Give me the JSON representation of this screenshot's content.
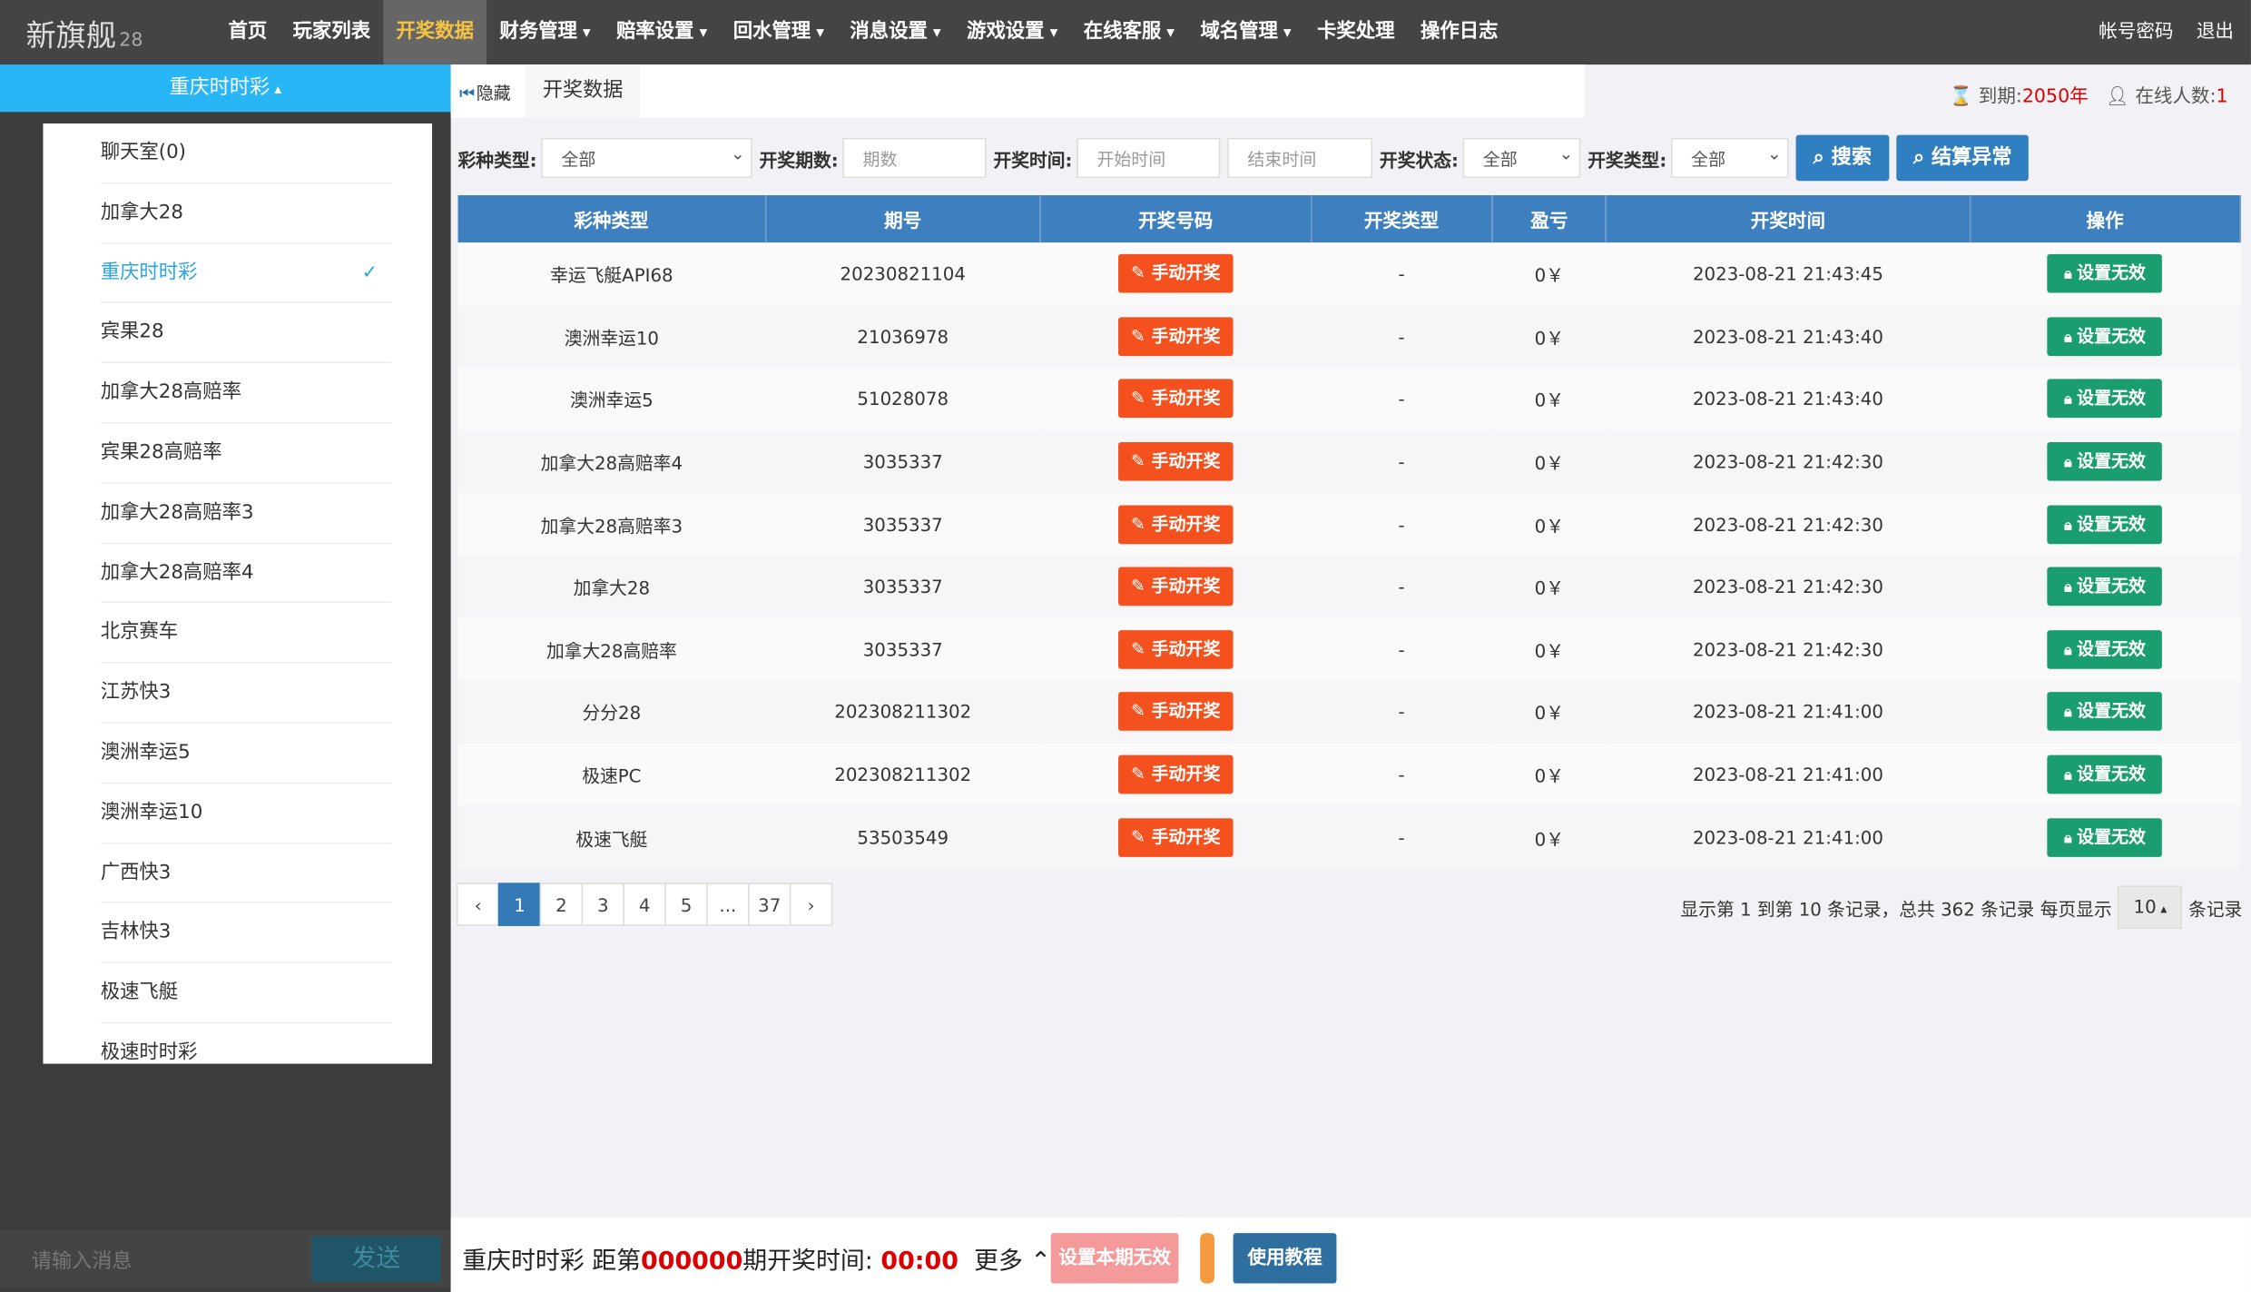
{
  "header": {
    "logo": "新旗舰",
    "logo_suffix": "28",
    "nav": [
      {
        "label": "首页"
      },
      {
        "label": "玩家列表"
      },
      {
        "label": "开奖数据",
        "active": true
      },
      {
        "label": "财务管理",
        "dropdown": true
      },
      {
        "label": "赔率设置",
        "dropdown": true
      },
      {
        "label": "回水管理",
        "dropdown": true
      },
      {
        "label": "消息设置",
        "dropdown": true
      },
      {
        "label": "游戏设置",
        "dropdown": true
      },
      {
        "label": "在线客服",
        "dropdown": true
      },
      {
        "label": "域名管理",
        "dropdown": true
      },
      {
        "label": "卡奖处理"
      },
      {
        "label": "操作日志"
      }
    ],
    "account": "帐号密码",
    "logout": "退出"
  },
  "sidebar": {
    "title": "重庆时时彩",
    "items": [
      {
        "label": "聊天室(0)"
      },
      {
        "label": "加拿大28"
      },
      {
        "label": "重庆时时彩",
        "selected": true
      },
      {
        "label": "宾果28"
      },
      {
        "label": "加拿大28高赔率"
      },
      {
        "label": "宾果28高赔率"
      },
      {
        "label": "加拿大28高赔率3"
      },
      {
        "label": "加拿大28高赔率4"
      },
      {
        "label": "北京赛车"
      },
      {
        "label": "江苏快3"
      },
      {
        "label": "澳洲幸运5"
      },
      {
        "label": "澳洲幸运10"
      },
      {
        "label": "广西快3"
      },
      {
        "label": "吉林快3"
      },
      {
        "label": "极速飞艇"
      },
      {
        "label": "极速时时彩"
      }
    ],
    "chat_placeholder": "请输入消息",
    "send": "发送"
  },
  "tabs": {
    "hide": "隐藏",
    "current": "开奖数据",
    "expiry_label": "到期:",
    "expiry": "2050年",
    "online_label": "在线人数:",
    "online": "1"
  },
  "filters": {
    "type_label": "彩种类型:",
    "type_value": "全部",
    "issue_label": "开奖期数:",
    "issue_placeholder": "期数",
    "time_label": "开奖时间:",
    "start_placeholder": "开始时间",
    "end_placeholder": "结束时间",
    "status_label": "开奖状态:",
    "status_value": "全部",
    "kind_label": "开奖类型:",
    "kind_value": "全部",
    "search": "搜索",
    "settle": "结算异常"
  },
  "table": {
    "headers": [
      "彩种类型",
      "期号",
      "开奖号码",
      "开奖类型",
      "盈亏",
      "开奖时间",
      "操作"
    ],
    "rows": [
      [
        "幸运飞艇API68",
        "20230821104",
        "手动开奖",
        "-",
        "0￥",
        "2023-08-21 21:43:45",
        "设置无效"
      ],
      [
        "澳洲幸运10",
        "21036978",
        "手动开奖",
        "-",
        "0￥",
        "2023-08-21 21:43:40",
        "设置无效"
      ],
      [
        "澳洲幸运5",
        "51028078",
        "手动开奖",
        "-",
        "0￥",
        "2023-08-21 21:43:40",
        "设置无效"
      ],
      [
        "加拿大28高赔率4",
        "3035337",
        "手动开奖",
        "-",
        "0￥",
        "2023-08-21 21:42:30",
        "设置无效"
      ],
      [
        "加拿大28高赔率3",
        "3035337",
        "手动开奖",
        "-",
        "0￥",
        "2023-08-21 21:42:30",
        "设置无效"
      ],
      [
        "加拿大28",
        "3035337",
        "手动开奖",
        "-",
        "0￥",
        "2023-08-21 21:42:30",
        "设置无效"
      ],
      [
        "加拿大28高赔率",
        "3035337",
        "手动开奖",
        "-",
        "0￥",
        "2023-08-21 21:42:30",
        "设置无效"
      ],
      [
        "分分28",
        "202308211302",
        "手动开奖",
        "-",
        "0￥",
        "2023-08-21 21:41:00",
        "设置无效"
      ],
      [
        "极速PC",
        "202308211302",
        "手动开奖",
        "-",
        "0￥",
        "2023-08-21 21:41:00",
        "设置无效"
      ],
      [
        "极速飞艇",
        "53503549",
        "手动开奖",
        "-",
        "0￥",
        "2023-08-21 21:41:00",
        "设置无效"
      ]
    ]
  },
  "pagination": {
    "pages": [
      {
        "label": "‹"
      },
      {
        "label": "1",
        "active": true
      },
      {
        "label": "2"
      },
      {
        "label": "3"
      },
      {
        "label": "4"
      },
      {
        "label": "5"
      },
      {
        "label": "..."
      },
      {
        "label": "37"
      },
      {
        "label": "›"
      }
    ],
    "info": "显示第 1 到第 10 条记录，总共 362 条记录",
    "per_page_label": "每页显示",
    "per_page": "10",
    "per_page_suffix": "条记录"
  },
  "footer": {
    "game": "重庆时时彩",
    "before_issue": "距第",
    "issue": "000000",
    "after_issue": "期开奖时间:",
    "countdown": "00:00",
    "more": "更多",
    "invalidate": "设置本期无效",
    "tutorial": "使用教程"
  }
}
